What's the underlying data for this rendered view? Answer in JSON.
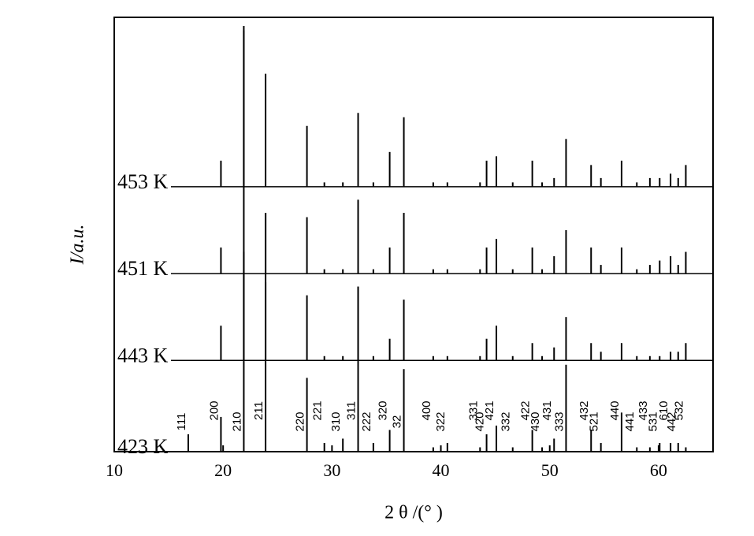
{
  "chart_data": {
    "type": "stick",
    "xlabel": "2 θ /(° )",
    "ylabel": "I/a.u.",
    "xlim": [
      10,
      65
    ],
    "ylim": [
      0,
      100
    ],
    "xticks": [
      10,
      20,
      30,
      40,
      50,
      60
    ],
    "x": [
      16.8,
      19.8,
      21.9,
      23.9,
      27.7,
      29.3,
      31.0,
      32.4,
      33.8,
      35.3,
      36.6,
      39.3,
      40.6,
      43.6,
      44.2,
      45.1,
      46.6,
      48.4,
      49.3,
      50.4,
      51.5,
      53.8,
      54.7,
      56.6,
      58.0,
      59.2,
      60.1,
      61.1,
      61.8,
      62.5
    ],
    "peak_labels": [
      "111",
      "200",
      "210",
      "211",
      "220",
      "221",
      "310",
      "311",
      "222",
      "320",
      "32",
      "400",
      "322",
      "331",
      "420",
      "421",
      "332",
      "422",
      "430",
      "431",
      "333",
      "432",
      "521",
      "440",
      "441",
      "433",
      "531",
      "610",
      "442",
      "532"
    ],
    "series": [
      {
        "name": "423 K",
        "color": "#000000",
        "baseline": 0,
        "values": [
          4,
          8,
          97,
          55,
          17,
          2,
          3,
          38,
          2,
          5,
          19,
          1,
          2,
          1,
          4,
          6,
          1,
          5,
          1,
          3,
          20,
          5,
          2,
          9,
          1,
          1,
          2,
          2,
          2,
          1
        ]
      },
      {
        "name": "443 K",
        "color": "#000000",
        "baseline": 21,
        "values": [
          0,
          8,
          20,
          18,
          15,
          1,
          1,
          17,
          1,
          5,
          14,
          1,
          1,
          1,
          5,
          8,
          1,
          4,
          1,
          3,
          10,
          4,
          2,
          4,
          1,
          1,
          1,
          2,
          2,
          4
        ]
      },
      {
        "name": "451 K",
        "color": "#000000",
        "baseline": 41,
        "values": [
          0,
          6,
          5,
          14,
          13,
          1,
          1,
          17,
          1,
          6,
          14,
          1,
          1,
          1,
          6,
          8,
          1,
          6,
          1,
          4,
          10,
          6,
          2,
          6,
          1,
          2,
          3,
          4,
          2,
          5
        ]
      },
      {
        "name": "453 K",
        "color": "#000000",
        "baseline": 61,
        "values": [
          0,
          6,
          37,
          26,
          14,
          1,
          1,
          17,
          1,
          8,
          16,
          1,
          1,
          1,
          6,
          7,
          1,
          6,
          1,
          2,
          11,
          5,
          2,
          6,
          1,
          2,
          2,
          3,
          2,
          5
        ]
      }
    ]
  }
}
